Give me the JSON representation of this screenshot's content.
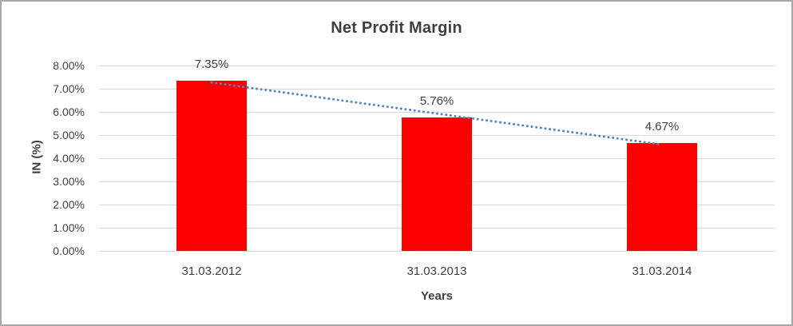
{
  "chart_data": {
    "type": "bar",
    "title": "Net Profit Margin",
    "xlabel": "Years",
    "ylabel": "IN (%)",
    "categories": [
      "31.03.2012",
      "31.03.2013",
      "31.03.2014"
    ],
    "values": [
      7.35,
      5.76,
      4.67
    ],
    "data_labels": [
      "7.35%",
      "5.76%",
      "4.67%"
    ],
    "ylim": [
      0,
      8
    ],
    "ytick_step": 1,
    "ytick_labels": [
      "0.00%",
      "1.00%",
      "2.00%",
      "3.00%",
      "4.00%",
      "5.00%",
      "6.00%",
      "7.00%",
      "8.00%"
    ],
    "grid": true,
    "legend": "none",
    "bar_color": "#ff0000",
    "trendline": {
      "type": "linear",
      "style": "dotted",
      "color": "#4e87c7"
    },
    "colors": {
      "text": "#404040",
      "title_text": "#3f3f3f",
      "gridline": "#d9d9d9",
      "frame_border": "#a8a8a8",
      "background": "#ffffff"
    }
  }
}
